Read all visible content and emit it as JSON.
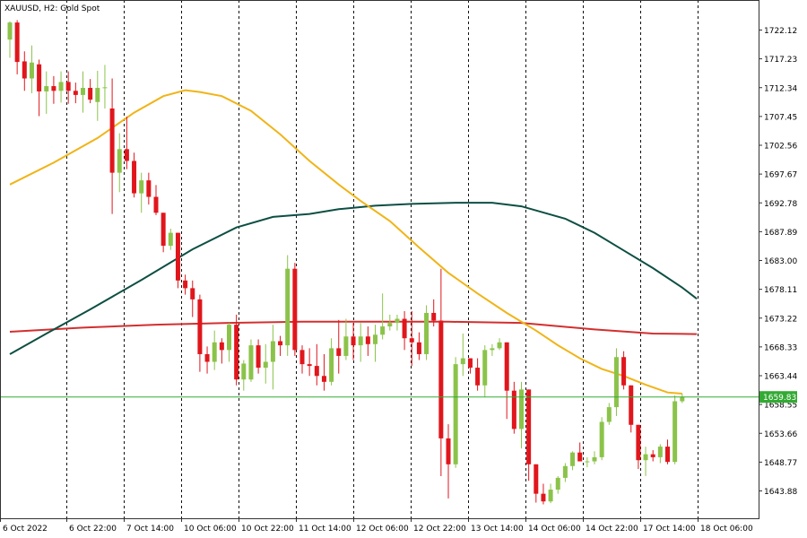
{
  "chart_data": {
    "type": "candlestick",
    "title": "XAUUSD, H2:  Gold Spot",
    "grid": "vertical dashed separators",
    "ylim": [
      1640,
      1726
    ],
    "y_ticks": [
      "1722.12",
      "1717.23",
      "1712.34",
      "1707.45",
      "1702.56",
      "1697.67",
      "1692.78",
      "1687.89",
      "1683.00",
      "1678.11",
      "1673.22",
      "1668.33",
      "1663.44",
      "1658.55",
      "1653.66",
      "1648.77",
      "1643.88"
    ],
    "x_ticks": [
      "6 Oct 2022",
      "6 Oct 22:00",
      "7 Oct 14:00",
      "10 Oct 06:00",
      "10 Oct 22:00",
      "11 Oct 14:00",
      "12 Oct 06:00",
      "12 Oct 22:00",
      "13 Oct 14:00",
      "14 Oct 06:00",
      "14 Oct 22:00",
      "17 Oct 14:00",
      "18 Oct 06:00"
    ],
    "current_price": 1659.83,
    "current_price_label": "1659.83",
    "colors": {
      "bull": "#8bc34a",
      "bear": "#e0161c",
      "ma_fast": "#f0b417",
      "ma_mid": "#0d4f43",
      "ma_slow": "#d32f2f",
      "price_line": "#33aa33",
      "axis": "#333333",
      "separator": "#111111"
    },
    "candles": [
      [
        1720.5,
        1723.6,
        1717.4,
        1723.4
      ],
      [
        1723.4,
        1723.8,
        1714.6,
        1716.7
      ],
      [
        1716.8,
        1718.5,
        1711.8,
        1713.9
      ],
      [
        1713.9,
        1719.5,
        1711.4,
        1716.6
      ],
      [
        1716.3,
        1717.1,
        1707.5,
        1711.7
      ],
      [
        1711.7,
        1715.1,
        1707.9,
        1712.6
      ],
      [
        1712.6,
        1714.3,
        1709.6,
        1711.8
      ],
      [
        1711.8,
        1715.1,
        1709.8,
        1713.3
      ],
      [
        1713.3,
        1715.1,
        1709.6,
        1711.8
      ],
      [
        1711.8,
        1713.2,
        1709.7,
        1711.1
      ],
      [
        1711.1,
        1715.1,
        1708.1,
        1712.3
      ],
      [
        1712.3,
        1713.8,
        1709.7,
        1710.3
      ],
      [
        1709.9,
        1715.2,
        1706.7,
        1712.3
      ],
      [
        1712.3,
        1716.2,
        1708.8,
        1712.4
      ],
      [
        1708.8,
        1713.9,
        1690.9,
        1697.9
      ],
      [
        1697.9,
        1704.6,
        1694.6,
        1701.9
      ],
      [
        1701.9,
        1707.4,
        1698.5,
        1699.9
      ],
      [
        1699.9,
        1701.3,
        1693.7,
        1694.4
      ],
      [
        1694.4,
        1697.9,
        1691.1,
        1696.6
      ],
      [
        1696.6,
        1697.9,
        1692.5,
        1693.8
      ],
      [
        1693.8,
        1695.8,
        1690.7,
        1691.1
      ],
      [
        1691.1,
        1691.1,
        1684.4,
        1685.5
      ],
      [
        1685.5,
        1688.4,
        1684.8,
        1687.7
      ],
      [
        1687.7,
        1687.7,
        1678.3,
        1679.6
      ],
      [
        1679.6,
        1680.6,
        1677.2,
        1678.3
      ],
      [
        1678.3,
        1679.6,
        1673.4,
        1676.4
      ],
      [
        1676.4,
        1677.2,
        1664.1,
        1667.1
      ],
      [
        1667.1,
        1668.4,
        1663.8,
        1665.8
      ],
      [
        1665.8,
        1671.1,
        1664.4,
        1669.1
      ],
      [
        1669.1,
        1669.8,
        1665.5,
        1667.8
      ],
      [
        1667.8,
        1672.4,
        1665.8,
        1672.1
      ],
      [
        1672.1,
        1673.8,
        1661.8,
        1662.8
      ],
      [
        1662.8,
        1666.1,
        1660.9,
        1665.5
      ],
      [
        1662.8,
        1669.6,
        1662.4,
        1668.6
      ],
      [
        1668.6,
        1669.6,
        1663.8,
        1664.8
      ],
      [
        1664.8,
        1668.8,
        1662.1,
        1665.8
      ],
      [
        1665.8,
        1672.1,
        1661.1,
        1669.3
      ],
      [
        1669.3,
        1670.2,
        1666.8,
        1668.6
      ],
      [
        1668.6,
        1683.9,
        1666.8,
        1681.6
      ],
      [
        1681.6,
        1682.6,
        1666.8,
        1667.8
      ],
      [
        1667.8,
        1668.6,
        1663.8,
        1665.4
      ],
      [
        1665.4,
        1668.1,
        1663.4,
        1665.1
      ],
      [
        1665.1,
        1668.8,
        1661.8,
        1663.4
      ],
      [
        1663.4,
        1667.1,
        1660.9,
        1662.4
      ],
      [
        1662.4,
        1669.8,
        1661.8,
        1668.1
      ],
      [
        1668.1,
        1672.9,
        1663.8,
        1666.8
      ],
      [
        1666.8,
        1673.1,
        1666.1,
        1670.1
      ],
      [
        1670.1,
        1672.4,
        1666.1,
        1668.6
      ],
      [
        1668.6,
        1672.4,
        1665.8,
        1670.1
      ],
      [
        1670.1,
        1671.8,
        1666.8,
        1668.8
      ],
      [
        1668.8,
        1672.1,
        1665.8,
        1670.4
      ],
      [
        1670.4,
        1677.4,
        1669.6,
        1671.8
      ],
      [
        1671.8,
        1673.8,
        1671.1,
        1672.4
      ],
      [
        1672.4,
        1673.8,
        1671.1,
        1673.1
      ],
      [
        1673.1,
        1674.4,
        1667.8,
        1669.8
      ],
      [
        1669.8,
        1674.4,
        1665.1,
        1669.1
      ],
      [
        1669.1,
        1670.8,
        1666.1,
        1667.1
      ],
      [
        1667.1,
        1675.4,
        1666.1,
        1674.1
      ],
      [
        1674.1,
        1676.4,
        1671.8,
        1672.8
      ],
      [
        1672.8,
        1681.6,
        1646.4,
        1652.8
      ],
      [
        1652.8,
        1655.2,
        1642.6,
        1648.4
      ],
      [
        1648.4,
        1666.6,
        1647.8,
        1665.4
      ],
      [
        1665.4,
        1670.6,
        1663.4,
        1666.4
      ],
      [
        1666.4,
        1666.4,
        1663.8,
        1664.8
      ],
      [
        1664.8,
        1666.4,
        1660.9,
        1661.8
      ],
      [
        1661.8,
        1668.6,
        1659.8,
        1667.8
      ],
      [
        1667.8,
        1668.8,
        1666.8,
        1668.1
      ],
      [
        1668.1,
        1669.8,
        1667.8,
        1669.1
      ],
      [
        1669.1,
        1669.1,
        1656.1,
        1660.9
      ],
      [
        1660.9,
        1662.4,
        1653.6,
        1654.4
      ],
      [
        1654.4,
        1662.4,
        1651.1,
        1661.1
      ],
      [
        1661.1,
        1661.1,
        1645.6,
        1648.4
      ],
      [
        1648.4,
        1648.4,
        1641.9,
        1643.4
      ],
      [
        1643.4,
        1645.1,
        1641.6,
        1642.1
      ],
      [
        1642.1,
        1645.1,
        1641.8,
        1644.1
      ],
      [
        1644.1,
        1646.4,
        1643.4,
        1646.1
      ],
      [
        1646.1,
        1648.6,
        1645.4,
        1648.1
      ],
      [
        1648.1,
        1650.6,
        1647.4,
        1650.4
      ],
      [
        1650.4,
        1652.1,
        1649.4,
        1648.9
      ],
      [
        1648.9,
        1649.6,
        1647.9,
        1648.9
      ],
      [
        1648.9,
        1650.6,
        1648.4,
        1649.6
      ],
      [
        1649.6,
        1656.4,
        1649.1,
        1655.6
      ],
      [
        1655.6,
        1658.8,
        1655.1,
        1658.1
      ],
      [
        1658.1,
        1668.1,
        1656.6,
        1666.6
      ],
      [
        1666.6,
        1667.6,
        1661.1,
        1661.8
      ],
      [
        1661.8,
        1661.8,
        1653.8,
        1655.1
      ],
      [
        1655.1,
        1655.1,
        1647.6,
        1649.1
      ],
      [
        1649.1,
        1651.4,
        1646.4,
        1650.1
      ],
      [
        1650.1,
        1650.8,
        1648.9,
        1649.6
      ],
      [
        1649.6,
        1651.8,
        1648.6,
        1651.4
      ],
      [
        1651.4,
        1652.6,
        1648.4,
        1648.8
      ],
      [
        1648.8,
        1660.1,
        1648.4,
        1659.1
      ],
      [
        1659.1,
        1660.4,
        1658.8,
        1659.8
      ]
    ],
    "ma_fast": [
      [
        0,
        1695.9
      ],
      [
        6,
        1699.6
      ],
      [
        12,
        1703.8
      ],
      [
        17,
        1708.1
      ],
      [
        21,
        1710.9
      ],
      [
        24,
        1711.9
      ],
      [
        26,
        1711.6
      ],
      [
        29,
        1710.9
      ],
      [
        33,
        1708.4
      ],
      [
        37,
        1704.4
      ],
      [
        41,
        1699.9
      ],
      [
        45,
        1695.9
      ],
      [
        48,
        1693.1
      ],
      [
        52,
        1689.7
      ],
      [
        56,
        1685.2
      ],
      [
        60,
        1680.9
      ],
      [
        64,
        1677.4
      ],
      [
        68,
        1674.1
      ],
      [
        72,
        1671.1
      ],
      [
        75,
        1668.6
      ],
      [
        78,
        1666.4
      ],
      [
        81,
        1664.6
      ],
      [
        84,
        1663.4
      ],
      [
        87,
        1661.9
      ],
      [
        90,
        1660.6
      ],
      [
        92,
        1660.4
      ]
    ],
    "ma_mid": [
      [
        0,
        1667.1
      ],
      [
        5,
        1670.6
      ],
      [
        11,
        1674.7
      ],
      [
        18,
        1679.7
      ],
      [
        25,
        1684.9
      ],
      [
        31,
        1688.6
      ],
      [
        36,
        1690.4
      ],
      [
        41,
        1690.9
      ],
      [
        45,
        1691.7
      ],
      [
        50,
        1692.3
      ],
      [
        55,
        1692.6
      ],
      [
        61,
        1692.8
      ],
      [
        66,
        1692.8
      ],
      [
        70,
        1692.2
      ],
      [
        76,
        1690.1
      ],
      [
        80,
        1687.7
      ],
      [
        84,
        1684.7
      ],
      [
        88,
        1681.7
      ],
      [
        92,
        1678.4
      ],
      [
        94,
        1676.5
      ]
    ],
    "ma_slow": [
      [
        0,
        1670.9
      ],
      [
        10,
        1671.6
      ],
      [
        20,
        1672.1
      ],
      [
        30,
        1672.4
      ],
      [
        40,
        1672.6
      ],
      [
        50,
        1672.6
      ],
      [
        60,
        1672.6
      ],
      [
        70,
        1672.4
      ],
      [
        80,
        1671.3
      ],
      [
        88,
        1670.6
      ],
      [
        94,
        1670.5
      ]
    ]
  }
}
